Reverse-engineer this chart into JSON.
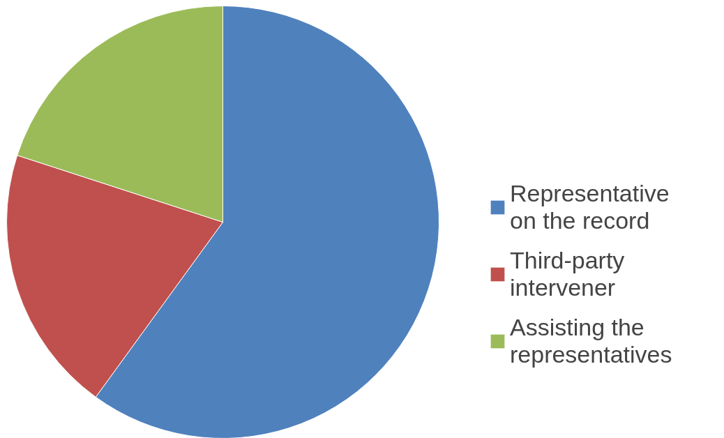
{
  "chart_data": {
    "type": "pie",
    "categories": [
      "Representative on the record",
      "Third-party intervener",
      "Assisting the representatives"
    ],
    "values": [
      60,
      20,
      20
    ],
    "colors": [
      "#4f81bd",
      "#c0504d",
      "#9bbb59"
    ],
    "legend": "right"
  }
}
